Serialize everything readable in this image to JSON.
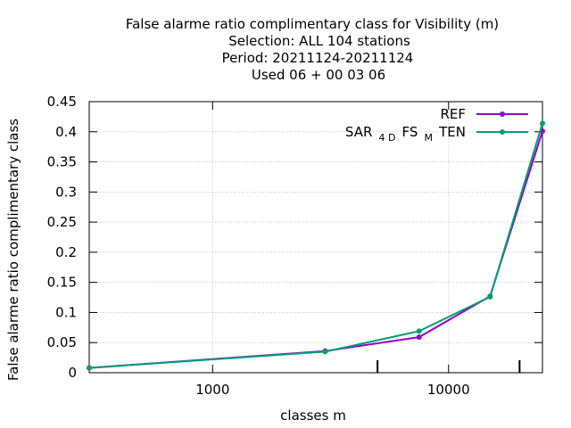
{
  "chart_data": {
    "type": "line",
    "title": [
      "False alarme ratio complimentary class  for Visibility (m)",
      "Selection: ALL    104 stations",
      "Period: 20211124-20211124",
      "Used  06 + 00 03 06"
    ],
    "xlabel": "classes m",
    "ylabel": "False alarme ratio complimentary class",
    "xscale": "log",
    "xlim": [
      300,
      25000
    ],
    "ylim": [
      0,
      0.45
    ],
    "x_ticks": [
      {
        "value": 1000,
        "label": "1000"
      },
      {
        "value": 10000,
        "label": "10000"
      }
    ],
    "x_minor_ticks": [
      5000,
      20000
    ],
    "y_ticks": [
      {
        "value": 0,
        "label": "0"
      },
      {
        "value": 0.05,
        "label": "0.05"
      },
      {
        "value": 0.1,
        "label": "0.1"
      },
      {
        "value": 0.15,
        "label": "0.15"
      },
      {
        "value": 0.2,
        "label": "0.2"
      },
      {
        "value": 0.25,
        "label": "0.25"
      },
      {
        "value": 0.3,
        "label": "0.3"
      },
      {
        "value": 0.35,
        "label": "0.35"
      },
      {
        "value": 0.4,
        "label": "0.4"
      },
      {
        "value": 0.45,
        "label": "0.45"
      }
    ],
    "grid": true,
    "legend_position": "top-right",
    "series": [
      {
        "name": "REF",
        "color": "#9400d3",
        "x": [
          300,
          3000,
          7500,
          15000,
          25000
        ],
        "y": [
          0.008,
          0.036,
          0.059,
          0.127,
          0.401
        ]
      },
      {
        "name": "SAR_4D FS_M TEN",
        "legend_parts": [
          "SAR",
          "4 D",
          "FS",
          "M",
          "TEN"
        ],
        "color": "#009e73",
        "x": [
          300,
          3000,
          7500,
          15000,
          25000
        ],
        "y": [
          0.008,
          0.035,
          0.069,
          0.126,
          0.414
        ]
      }
    ]
  }
}
